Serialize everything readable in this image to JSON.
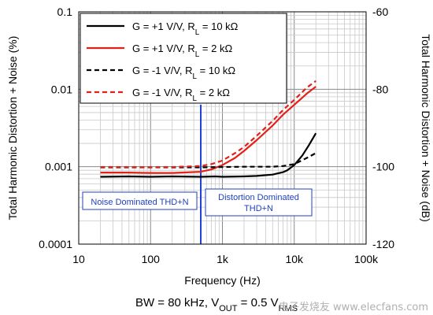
{
  "chart_data": {
    "type": "line",
    "xlabel": "Frequency (Hz)",
    "ylabel": "Total Harmonic Distortion + Noise (%)",
    "y2label": "Total Harmonic Distortion + Noise (dB)",
    "x_scale": "log",
    "y_scale": "log",
    "xlim": [
      10,
      100000
    ],
    "ylim": [
      0.0001,
      0.1
    ],
    "y2lim": [
      -120,
      -60
    ],
    "x_ticks": [
      "10",
      "100",
      "1k",
      "10k",
      "100k"
    ],
    "y_ticks": [
      "0.0001",
      "0.001",
      "0.01",
      "0.1"
    ],
    "y2_ticks": [
      "-120",
      "-100",
      "-80",
      "-60"
    ],
    "grid": true,
    "legend_position": "top-left",
    "series": [
      {
        "name_parts": [
          "G = +1 V/V, R",
          "L",
          " = 10 kΩ"
        ],
        "color": "#000000",
        "style": "solid",
        "x": [
          20,
          50,
          100,
          200,
          500,
          800,
          1000,
          2000,
          3000,
          5000,
          7000,
          8000,
          10000,
          13000,
          16000,
          20000
        ],
        "y": [
          0.00074,
          0.00075,
          0.00074,
          0.00075,
          0.00074,
          0.00075,
          0.00074,
          0.00075,
          0.00076,
          0.00079,
          0.00085,
          0.0009,
          0.00105,
          0.0014,
          0.0019,
          0.0027
        ]
      },
      {
        "name_parts": [
          "G = +1 V/V, R",
          "L",
          " = 2 kΩ"
        ],
        "color": "#e32119",
        "style": "solid",
        "x": [
          20,
          50,
          100,
          200,
          500,
          700,
          1000,
          1500,
          2000,
          3000,
          5000,
          7000,
          10000,
          15000,
          20000
        ],
        "y": [
          0.00084,
          0.00084,
          0.00083,
          0.00083,
          0.00086,
          0.00092,
          0.00105,
          0.0013,
          0.0016,
          0.0022,
          0.0034,
          0.0047,
          0.0063,
          0.0088,
          0.0108
        ]
      },
      {
        "name_parts": [
          "G = -1 V/V, R",
          "L",
          " = 10 kΩ"
        ],
        "color": "#000000",
        "style": "dashed",
        "x": [
          20,
          50,
          100,
          200,
          500,
          1000,
          2000,
          3000,
          5000,
          7000,
          10000,
          15000,
          20000
        ],
        "y": [
          0.00098,
          0.00098,
          0.00098,
          0.00098,
          0.00098,
          0.00099,
          0.001,
          0.001,
          0.001,
          0.00102,
          0.00108,
          0.0013,
          0.0015
        ]
      },
      {
        "name_parts": [
          "G = -1 V/V, R",
          "L",
          " = 2 kΩ"
        ],
        "color": "#e32119",
        "style": "dashed",
        "x": [
          20,
          50,
          100,
          200,
          500,
          700,
          1000,
          1500,
          2000,
          3000,
          5000,
          7000,
          10000,
          15000,
          20000
        ],
        "y": [
          0.00099,
          0.00099,
          0.00098,
          0.00099,
          0.00102,
          0.00108,
          0.0012,
          0.0015,
          0.0018,
          0.0025,
          0.0039,
          0.0054,
          0.0073,
          0.0105,
          0.0128
        ]
      }
    ],
    "vertical_marker": {
      "x": 500,
      "color": "#1f3fd6"
    },
    "annotations": {
      "left": [
        "Noise Dominated THD+N"
      ],
      "right": [
        "Distortion Dominated",
        "THD+N"
      ]
    },
    "caption_parts": [
      "BW = 80 kHz, V",
      "OUT",
      " = 0.5 V",
      "RMS"
    ]
  },
  "watermark": "电子发烧友 www.elecfans.com"
}
